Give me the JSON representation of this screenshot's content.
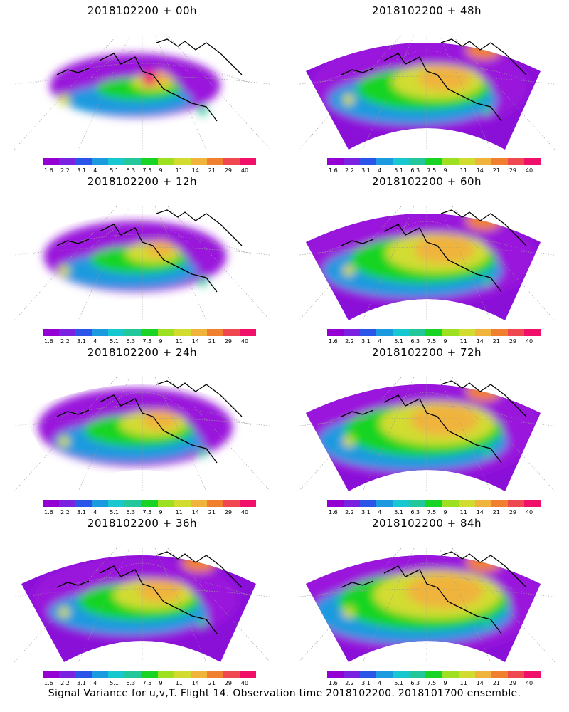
{
  "panels": [
    {
      "title": "2018102200  +  00h",
      "lead": 0
    },
    {
      "title": "2018102200  +  48h",
      "lead": 48
    },
    {
      "title": "2018102200  +  12h",
      "lead": 12
    },
    {
      "title": "2018102200  +  60h",
      "lead": 60
    },
    {
      "title": "2018102200  +  24h",
      "lead": 24
    },
    {
      "title": "2018102200  +  72h",
      "lead": 72
    },
    {
      "title": "2018102200  +  36h",
      "lead": 36
    },
    {
      "title": "2018102200  +  84h",
      "lead": 84
    }
  ],
  "colorbar": {
    "colors": [
      "#9400d3",
      "#7a22e0",
      "#2a55e8",
      "#1c9ae0",
      "#18c8d0",
      "#22c89a",
      "#19d424",
      "#9ce020",
      "#d2dc30",
      "#f0b43c",
      "#f08030",
      "#f04850",
      "#f0106a"
    ],
    "labels": [
      "1.6",
      "2.2",
      "3.1",
      "4",
      "5.1",
      "6.3",
      "7.5",
      "9",
      "11",
      "14",
      "21",
      "29",
      "40"
    ]
  },
  "caption": "Signal Variance for u,v,T. Flight 14. Observation time 2018102200. 2018101700 ensemble."
}
